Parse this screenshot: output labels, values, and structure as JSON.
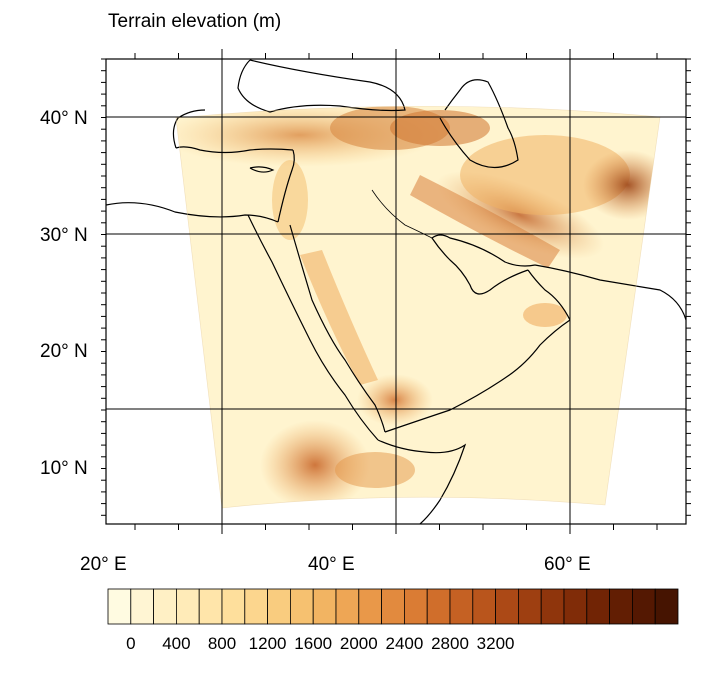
{
  "title": "Terrain elevation (m)",
  "map": {
    "lat_labels": [
      "40° N",
      "30° N",
      "20° N",
      "10° N"
    ],
    "lon_labels": [
      "20° E",
      "40° E",
      "60° E"
    ],
    "lat_range": [
      5,
      45
    ],
    "lon_range": [
      20,
      70
    ],
    "projection": "lambert-conformal",
    "region": "Middle East / Arabian Peninsula / Horn of Africa"
  },
  "colorbar": {
    "tick_labels": [
      "0",
      "400",
      "800",
      "1200",
      "1600",
      "2000",
      "2400",
      "2800",
      "3200"
    ],
    "min": 0,
    "max": 3600,
    "interval": 200,
    "colors": [
      "#FFFBE1",
      "#FFF5D3",
      "#FFF0C5",
      "#FFEBB8",
      "#FFE5AA",
      "#FEDF9C",
      "#FCD68E",
      "#F9CC7F",
      "#F6C170",
      "#F2B462",
      "#EEA655",
      "#E99849",
      "#E28A3E",
      "#DA7C34",
      "#D06E2B",
      "#C56123",
      "#B9551C",
      "#AC4916",
      "#9E3F11",
      "#8F350C",
      "#802C08",
      "#712405",
      "#621E03",
      "#541802",
      "#461401"
    ]
  }
}
